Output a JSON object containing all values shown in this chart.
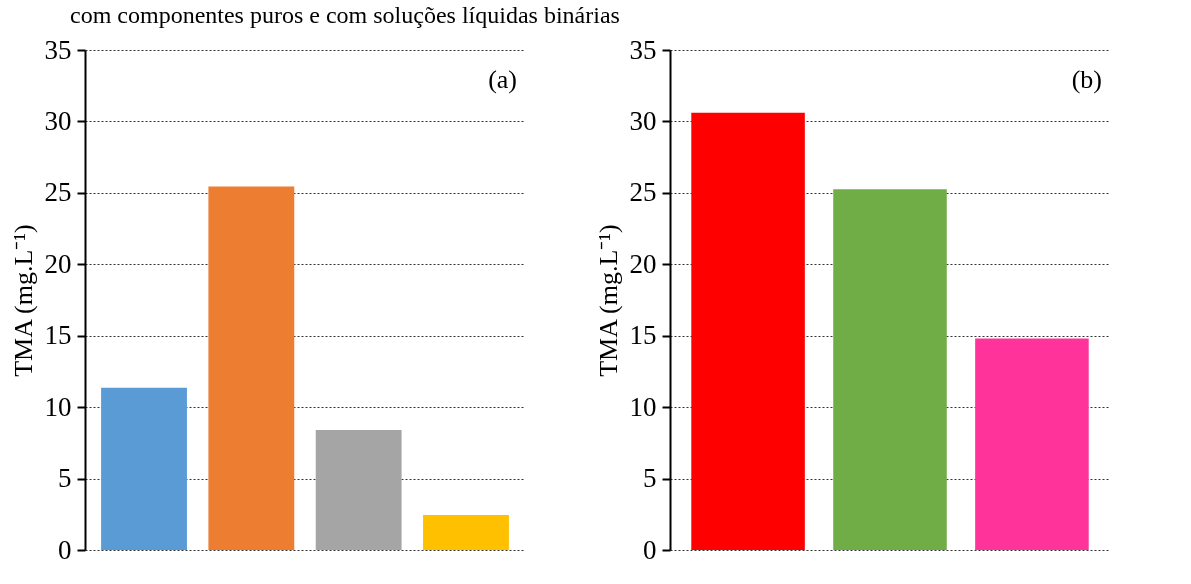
{
  "chart_data": [
    {
      "type": "bar",
      "title": "com componentes puros e com soluções líquidas binárias",
      "ylabel": "TMA (mg.L⁻¹)",
      "categories": [
        null,
        null,
        null,
        null
      ],
      "values": [
        11.35,
        25.45,
        8.4,
        2.45
      ],
      "colors": [
        "#5b9bd5",
        "#ed7d31",
        "#a5a5a5",
        "#ffc000"
      ],
      "ylim": [
        0,
        35
      ],
      "yticks": [
        0,
        5,
        10,
        15,
        20,
        25,
        30,
        35
      ],
      "grid": "y",
      "tick_labels": "y",
      "annotations": [
        "(a)"
      ]
    },
    {
      "type": "bar",
      "ylabel": "TMA (mg.L⁻¹)",
      "categories": [
        null,
        null,
        null
      ],
      "values": [
        30.6,
        25.25,
        14.8
      ],
      "colors": [
        "#ff0000",
        "#70ad47",
        "#ff3399"
      ],
      "ylim": [
        0,
        35
      ],
      "yticks": [
        0,
        5,
        10,
        15,
        20,
        25,
        30,
        35
      ],
      "grid": "y",
      "tick_labels": "y",
      "annotations": [
        "(b)"
      ]
    }
  ]
}
